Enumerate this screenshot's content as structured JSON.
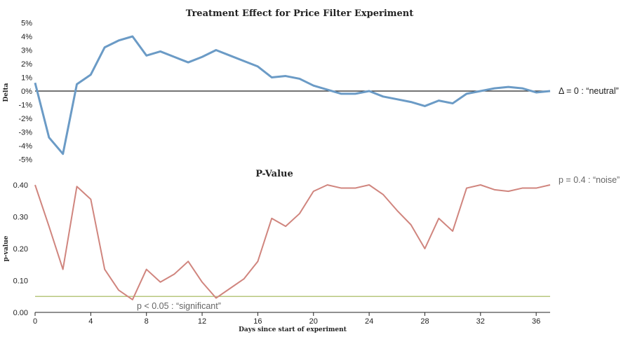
{
  "chart_data": [
    {
      "type": "line",
      "title": "Treatment Effect for Price Filter Experiment",
      "ylabel": "Delta",
      "ylim": [
        -5,
        5
      ],
      "yticks": [
        "5%",
        "4%",
        "3%",
        "2%",
        "1%",
        "0%",
        "-1%",
        "-2%",
        "-3%",
        "-4%",
        "-5%"
      ],
      "series": [
        {
          "color": "#6b9bc6",
          "x": [
            0,
            1,
            2,
            3,
            4,
            5,
            6,
            7,
            8,
            9,
            10,
            11,
            12,
            13,
            14,
            15,
            16,
            17,
            18,
            19,
            20,
            21,
            22,
            23,
            24,
            25,
            26,
            27,
            28,
            29,
            30,
            31,
            32,
            33,
            34,
            35,
            36,
            37
          ],
          "y": [
            0.6,
            -3.4,
            -4.6,
            0.5,
            1.2,
            3.2,
            3.7,
            4.0,
            2.6,
            2.9,
            2.5,
            2.1,
            2.5,
            3.0,
            2.6,
            2.2,
            1.8,
            1.0,
            1.1,
            0.9,
            0.4,
            0.1,
            -0.2,
            -0.2,
            0.0,
            -0.4,
            -0.6,
            -0.8,
            -1.1,
            -0.7,
            -0.9,
            -0.2,
            0.0,
            0.2,
            0.3,
            0.2,
            -0.1,
            0.0
          ]
        }
      ],
      "reference_line": {
        "y": 0,
        "color": "#222222",
        "label": "Δ = 0 : “neutral”"
      }
    },
    {
      "type": "line",
      "title": "P-Value",
      "xlabel": "Days since start of experiment",
      "ylabel": "p-value",
      "ylim": [
        0,
        0.42
      ],
      "xlim": [
        0,
        37
      ],
      "yticks": [
        "0.40",
        "0.30",
        "0.20",
        "0.10",
        "0.00"
      ],
      "xticks": [
        "0",
        "4",
        "8",
        "12",
        "16",
        "20",
        "24",
        "28",
        "32",
        "36"
      ],
      "series": [
        {
          "color": "#d0857e",
          "x": [
            0,
            1,
            2,
            3,
            4,
            5,
            6,
            7,
            8,
            9,
            10,
            11,
            12,
            13,
            14,
            15,
            16,
            17,
            18,
            19,
            20,
            21,
            22,
            23,
            24,
            25,
            26,
            27,
            28,
            29,
            30,
            31,
            32,
            33,
            34,
            35,
            36,
            37
          ],
          "y": [
            0.4,
            0.27,
            0.135,
            0.395,
            0.355,
            0.135,
            0.07,
            0.04,
            0.135,
            0.095,
            0.12,
            0.16,
            0.095,
            0.045,
            0.075,
            0.105,
            0.16,
            0.295,
            0.27,
            0.31,
            0.38,
            0.4,
            0.39,
            0.39,
            0.4,
            0.37,
            0.32,
            0.275,
            0.2,
            0.295,
            0.255,
            0.39,
            0.4,
            0.385,
            0.38,
            0.39,
            0.39,
            0.4
          ]
        }
      ],
      "reference_lines": [
        {
          "y": 0.05,
          "color": "#b7c77e",
          "label": "p < 0.05 : “significant”"
        },
        {
          "y": 0.4,
          "label": "p = 0.4 : “noise”"
        }
      ]
    }
  ]
}
